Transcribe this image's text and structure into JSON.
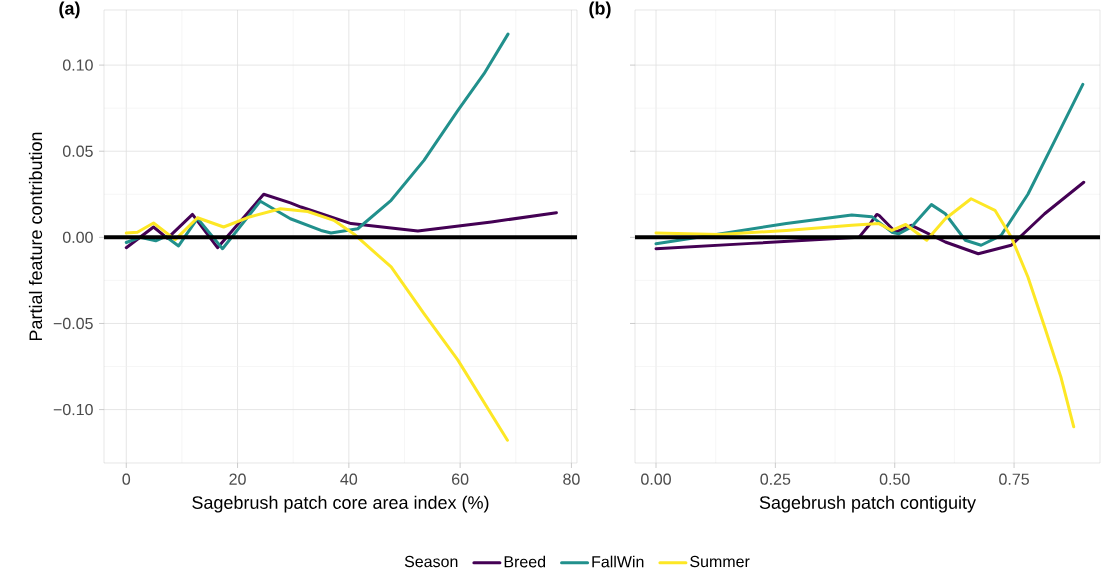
{
  "chart_data": [
    {
      "type": "line",
      "title": "(a)",
      "xlabel": "Sagebrush patch core area index (%)",
      "ylabel": "Partial feature contribution",
      "xlim": [
        -4,
        81
      ],
      "ylim": [
        -0.131,
        0.132
      ],
      "xticks": [
        0,
        20,
        40,
        60,
        80
      ],
      "yticks": [
        {
          "value": -0.1,
          "label": "−0.10"
        },
        {
          "value": -0.05,
          "label": "−0.05"
        },
        {
          "value": 0,
          "label": "0.00"
        },
        {
          "value": 0.05,
          "label": "0.05"
        },
        {
          "value": 0.1,
          "label": "0.10"
        }
      ],
      "grid": true,
      "legend": "bottom",
      "legend_title": "Season",
      "ref_lines": [
        {
          "axis": "y",
          "value": 0,
          "color": "#000000"
        }
      ],
      "series": [
        {
          "name": "Breed",
          "color": "#440154",
          "x": [
            0,
            4.9,
            7.4,
            11.9,
            16.4,
            24.7,
            29.5,
            31.4,
            40.4,
            52.4,
            65.6,
            77.3
          ],
          "values": [
            -0.006,
            0.006,
            -0.0006,
            0.0133,
            -0.006,
            0.025,
            0.02,
            0.0176,
            0.008,
            0.0037,
            0.0089,
            0.0143
          ]
        },
        {
          "name": "FallWin",
          "color": "#21908C",
          "x": [
            0,
            2.5,
            5.3,
            7.1,
            9.4,
            12.8,
            17.3,
            24.1,
            29.5,
            35,
            36.8,
            41.6,
            47.6,
            53.5,
            59.6,
            64.3,
            68.6
          ],
          "values": [
            -0.003,
            0.0,
            -0.002,
            0.0005,
            -0.005,
            0.011,
            -0.0066,
            0.021,
            0.0108,
            0.004,
            0.0025,
            0.005,
            0.0215,
            0.0447,
            0.0737,
            0.095,
            0.118
          ]
        },
        {
          "name": "Summer",
          "color": "#FDE725",
          "x": [
            0,
            2,
            4.9,
            8.8,
            12.8,
            17.5,
            22.3,
            27.7,
            32.6,
            37.3,
            40.9,
            47.6,
            53.5,
            59.6,
            68.5
          ],
          "values": [
            0.0025,
            0.003,
            0.0083,
            -0.0013,
            0.0114,
            0.006,
            0.012,
            0.0166,
            0.015,
            0.0099,
            0.002,
            -0.0172,
            -0.0443,
            -0.0713,
            -0.1178
          ]
        }
      ]
    },
    {
      "type": "line",
      "title": "(b)",
      "xlabel": "Sagebrush patch contiguity",
      "xlim": [
        -0.044,
        0.93
      ],
      "ylim": [
        -0.131,
        0.132
      ],
      "xticks": [
        {
          "value": 0,
          "label": "0.00"
        },
        {
          "value": 0.25,
          "label": "0.25"
        },
        {
          "value": 0.5,
          "label": "0.50"
        },
        {
          "value": 0.75,
          "label": "0.75"
        }
      ],
      "yticks": [
        {
          "value": -0.1,
          "label": null
        },
        {
          "value": -0.05,
          "label": null
        },
        {
          "value": 0,
          "label": null
        },
        {
          "value": 0.05,
          "label": null
        },
        {
          "value": 0.1,
          "label": null
        }
      ],
      "tick_labels": "x",
      "grid": true,
      "ref_lines": [
        {
          "axis": "y",
          "value": 0,
          "color": "#000000"
        }
      ],
      "series": [
        {
          "color": "#440154",
          "x": [
            0,
            0.2,
            0.425,
            0.446,
            0.4625,
            0.467,
            0.502,
            0.535,
            0.606,
            0.675,
            0.744,
            0.814,
            0.896
          ],
          "values": [
            -0.0066,
            -0.0035,
            0,
            0.007,
            0.0133,
            0.0128,
            0.003,
            0.007,
            -0.0027,
            -0.0095,
            -0.0046,
            0.0137,
            0.032
          ]
        },
        {
          "color": "#21908C",
          "x": [
            0,
            0.133,
            0.273,
            0.41,
            0.452,
            0.494,
            0.508,
            0.535,
            0.577,
            0.606,
            0.648,
            0.681,
            0.723,
            0.779,
            0.835,
            0.894
          ],
          "values": [
            -0.0037,
            0.002,
            0.008,
            0.013,
            0.012,
            0.003,
            0.002,
            0.006,
            0.019,
            0.0137,
            -0.0017,
            -0.0046,
            0.0012,
            0.025,
            0.056,
            0.0888
          ]
        },
        {
          "color": "#FDE725",
          "x": [
            0,
            0.133,
            0.273,
            0.41,
            0.467,
            0.494,
            0.523,
            0.567,
            0.606,
            0.66,
            0.71,
            0.744,
            0.779,
            0.814,
            0.848,
            0.875
          ],
          "values": [
            0.0025,
            0.0017,
            0.004,
            0.007,
            0.008,
            0.004,
            0.0075,
            -0.0017,
            0.0108,
            0.0224,
            0.0157,
            0.0002,
            -0.023,
            -0.052,
            -0.081,
            -0.11
          ]
        }
      ]
    }
  ]
}
